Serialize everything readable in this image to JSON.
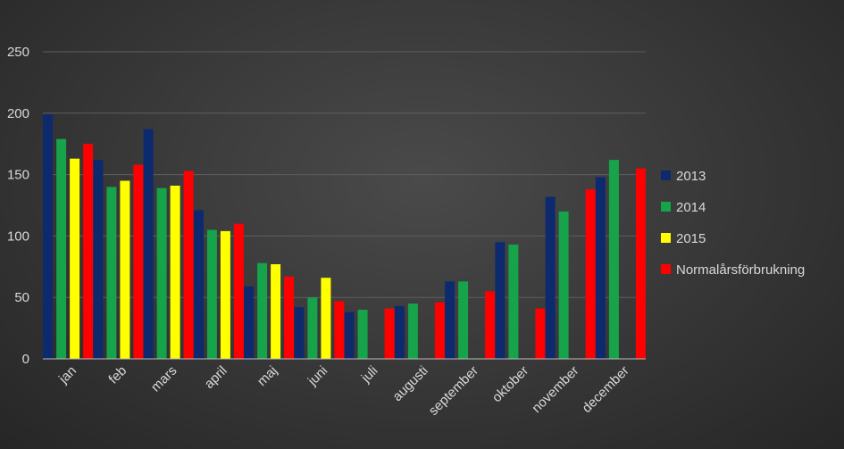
{
  "chart_data": {
    "type": "bar",
    "categories": [
      "jan",
      "feb",
      "mars",
      "april",
      "maj",
      "juni",
      "juli",
      "augusti",
      "september",
      "oktober",
      "november",
      "december"
    ],
    "series": [
      {
        "name": "2013",
        "color": "#0d2a6e",
        "values": [
          199,
          162,
          187,
          121,
          59,
          42,
          38,
          43,
          63,
          95,
          132,
          148
        ]
      },
      {
        "name": "2014",
        "color": "#16a34a",
        "values": [
          179,
          140,
          139,
          105,
          78,
          50,
          40,
          45,
          63,
          93,
          120,
          162
        ]
      },
      {
        "name": "2015",
        "color": "#ffff00",
        "values": [
          163,
          145,
          141,
          104,
          77,
          66,
          null,
          null,
          null,
          null,
          null,
          null
        ]
      },
      {
        "name": "Normalårsförbrukning",
        "color": "#ff0000",
        "values": [
          175,
          158,
          153,
          110,
          67,
          47,
          41,
          46,
          55,
          41,
          138,
          155
        ]
      }
    ],
    "yticks": [
      0,
      50,
      100,
      150,
      200,
      250
    ],
    "ylim": [
      0,
      250
    ],
    "grid": true,
    "legend_position": "right",
    "title": "",
    "xlabel": "",
    "ylabel": ""
  }
}
